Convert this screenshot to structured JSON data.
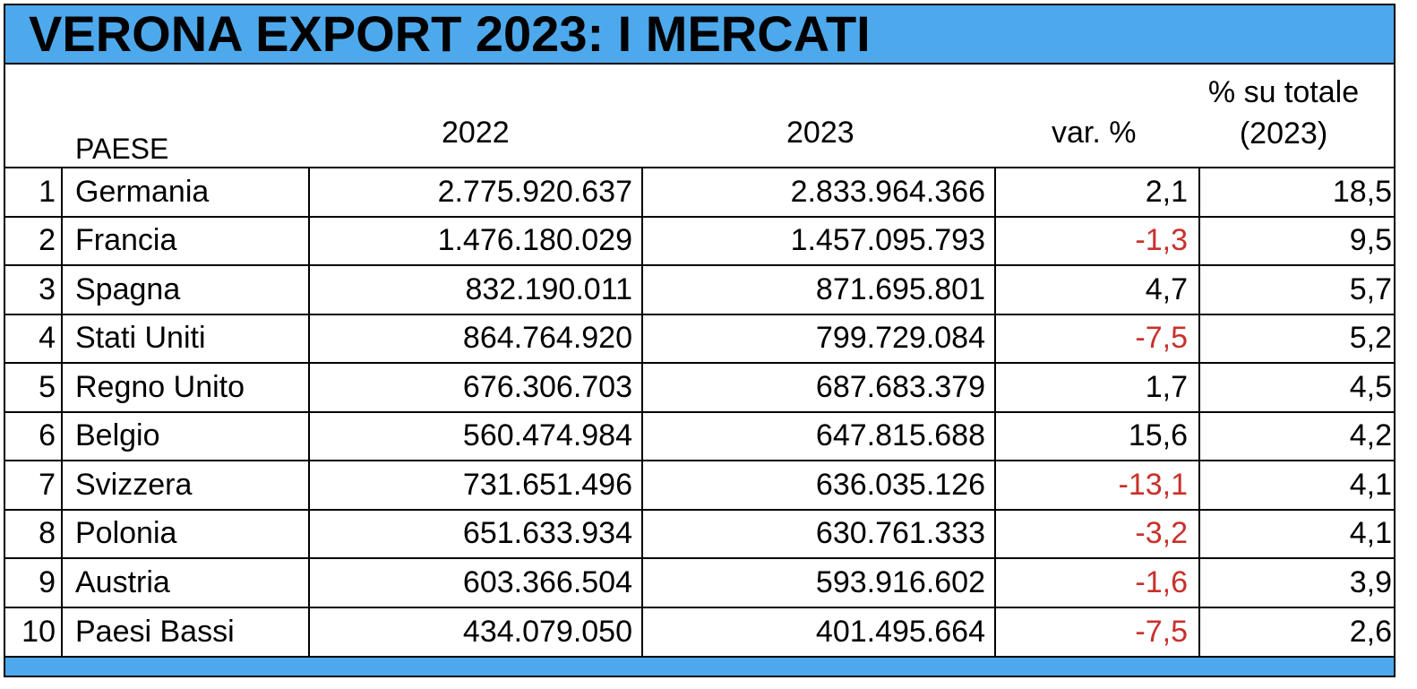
{
  "title": "VERONA EXPORT 2023: I MERCATI",
  "colors": {
    "accent": "#4da9eb",
    "negative": "#c8312c",
    "text": "#000000"
  },
  "chart_data": {
    "type": "table",
    "title": "VERONA EXPORT 2023: I MERCATI",
    "columns": {
      "paese": "PAESE",
      "y2022": "2022",
      "y2023": "2023",
      "var": "var. %",
      "share_line1": "% su totale",
      "share_line2": "(2023)"
    },
    "rows": [
      {
        "rank": "1",
        "paese": "Germania",
        "y2022": "2.775.920.637",
        "y2023": "2.833.964.366",
        "var": "2,1",
        "share": "18,5",
        "negative": false
      },
      {
        "rank": "2",
        "paese": "Francia",
        "y2022": "1.476.180.029",
        "y2023": "1.457.095.793",
        "var": "-1,3",
        "share": "9,5",
        "negative": true
      },
      {
        "rank": "3",
        "paese": "Spagna",
        "y2022": "832.190.011",
        "y2023": "871.695.801",
        "var": "4,7",
        "share": "5,7",
        "negative": false
      },
      {
        "rank": "4",
        "paese": "Stati Uniti",
        "y2022": "864.764.920",
        "y2023": "799.729.084",
        "var": "-7,5",
        "share": "5,2",
        "negative": true
      },
      {
        "rank": "5",
        "paese": "Regno Unito",
        "y2022": "676.306.703",
        "y2023": "687.683.379",
        "var": "1,7",
        "share": "4,5",
        "negative": false
      },
      {
        "rank": "6",
        "paese": "Belgio",
        "y2022": "560.474.984",
        "y2023": "647.815.688",
        "var": "15,6",
        "share": "4,2",
        "negative": false
      },
      {
        "rank": "7",
        "paese": "Svizzera",
        "y2022": "731.651.496",
        "y2023": "636.035.126",
        "var": "-13,1",
        "share": "4,1",
        "negative": true
      },
      {
        "rank": "8",
        "paese": "Polonia",
        "y2022": "651.633.934",
        "y2023": "630.761.333",
        "var": "-3,2",
        "share": "4,1",
        "negative": true
      },
      {
        "rank": "9",
        "paese": "Austria",
        "y2022": "603.366.504",
        "y2023": "593.916.602",
        "var": "-1,6",
        "share": "3,9",
        "negative": true
      },
      {
        "rank": "10",
        "paese": "Paesi Bassi",
        "y2022": "434.079.050",
        "y2023": "401.495.664",
        "var": "-7,5",
        "share": "2,6",
        "negative": true
      }
    ]
  }
}
